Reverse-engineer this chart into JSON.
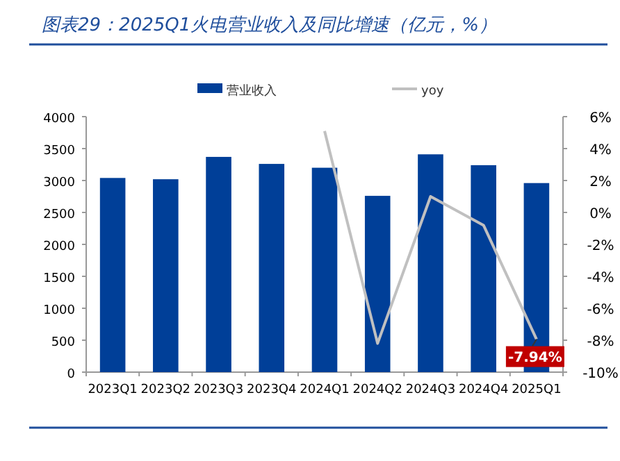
{
  "chart_data": {
    "type": "bar",
    "title": "图表29：2025Q1火电营业收入及同比增速（亿元，%）",
    "categories": [
      "2023Q1",
      "2023Q2",
      "2023Q3",
      "2023Q4",
      "2024Q1",
      "2024Q2",
      "2024Q3",
      "2024Q4",
      "2025Q1"
    ],
    "series": [
      {
        "name": "营业收入",
        "color": "#003f98",
        "values": [
          3040,
          3020,
          3370,
          3260,
          3200,
          2760,
          3410,
          3240,
          2960
        ]
      },
      {
        "name": "yoy",
        "type": "line",
        "axis": "y2",
        "color": "#c0c0c0",
        "values": [
          null,
          null,
          null,
          null,
          5.1,
          -8.2,
          1.0,
          -0.8,
          -7.94
        ],
        "value_labels": [
          null,
          null,
          null,
          null,
          null,
          null,
          null,
          null,
          "-7.94%"
        ]
      }
    ],
    "ylim": [
      0,
      4000
    ],
    "yticks": [
      0,
      500,
      1000,
      1500,
      2000,
      2500,
      3000,
      3500,
      4000
    ],
    "y2lim": [
      -10,
      6
    ],
    "y2ticks": [
      {
        "value": -10,
        "label": "-10%"
      },
      {
        "value": -8,
        "label": "-8%"
      },
      {
        "value": -6,
        "label": "-6%"
      },
      {
        "value": -4,
        "label": "-4%"
      },
      {
        "value": -2,
        "label": "-2%"
      },
      {
        "value": 0,
        "label": "0%"
      },
      {
        "value": 2,
        "label": "2%"
      },
      {
        "value": 4,
        "label": "4%"
      },
      {
        "value": 6,
        "label": "6%"
      }
    ],
    "legend": "top",
    "grid": false
  }
}
